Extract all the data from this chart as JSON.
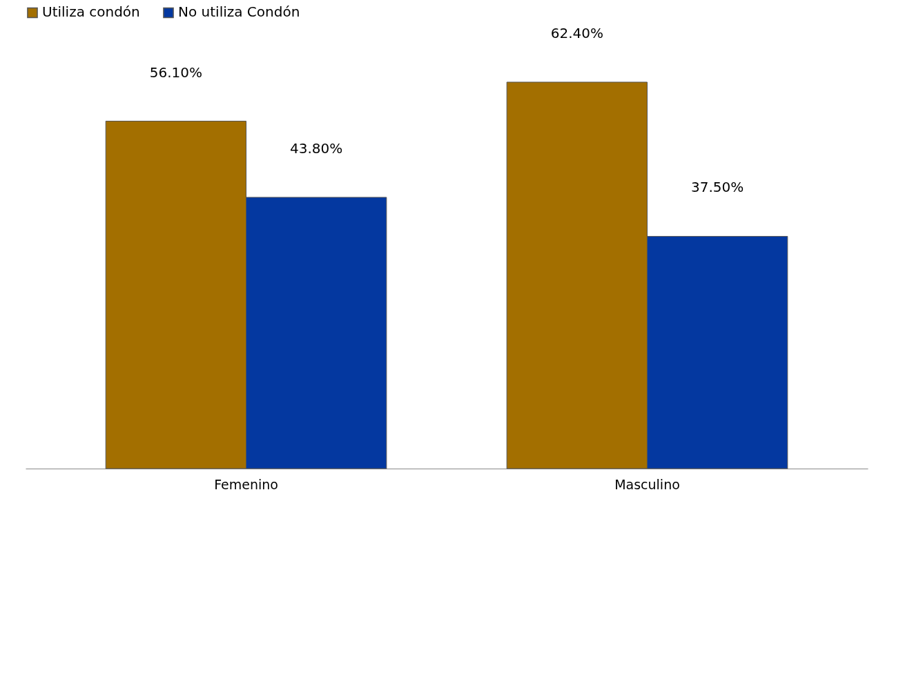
{
  "chart_data": {
    "type": "bar",
    "categories": [
      "Femenino",
      "Masculino"
    ],
    "series": [
      {
        "name": "Utiliza condón",
        "color": "#a36f00",
        "values": [
          56.1,
          62.4
        ],
        "value_labels": [
          "56.10%",
          "62.40%"
        ]
      },
      {
        "name": "No utiliza Condón",
        "color": "#0438a0",
        "values": [
          43.8,
          37.5
        ],
        "value_labels": [
          "43.80%",
          "37.50%"
        ]
      }
    ],
    "legend": "top",
    "grid": false
  }
}
